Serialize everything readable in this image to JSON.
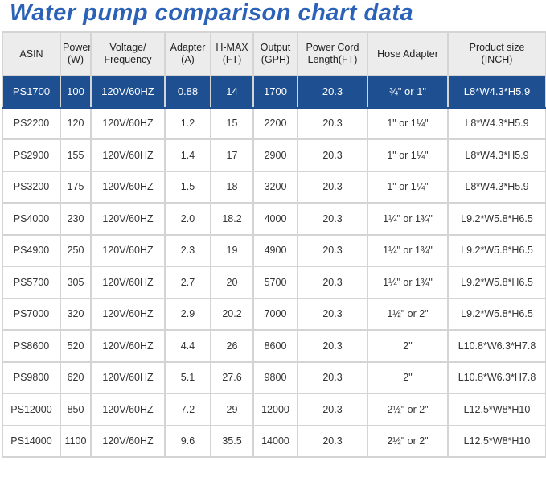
{
  "title": "Water pump comparison chart data",
  "table": {
    "header": [
      "ASIN",
      "Power\n(W)",
      "Voltage/\nFrequency",
      "Adapter\n(A)",
      "H-MAX\n(FT)",
      "Output\n(GPH)",
      "Power Cord\nLength(FT)",
      "Hose Adapter",
      "Product size\n(INCH)"
    ],
    "rows": [
      [
        "PS1700",
        "100",
        "120V/60HZ",
        "0.88",
        "14",
        "1700",
        "20.3",
        "¾\" or 1\"",
        "L8*W4.3*H5.9"
      ],
      [
        "PS2200",
        "120",
        "120V/60HZ",
        "1.2",
        "15",
        "2200",
        "20.3",
        "1\" or 1¼\"",
        "L8*W4.3*H5.9"
      ],
      [
        "PS2900",
        "155",
        "120V/60HZ",
        "1.4",
        "17",
        "2900",
        "20.3",
        "1\" or 1¼\"",
        "L8*W4.3*H5.9"
      ],
      [
        "PS3200",
        "175",
        "120V/60HZ",
        "1.5",
        "18",
        "3200",
        "20.3",
        "1\" or 1¼\"",
        "L8*W4.3*H5.9"
      ],
      [
        "PS4000",
        "230",
        "120V/60HZ",
        "2.0",
        "18.2",
        "4000",
        "20.3",
        "1¼\" or 1¾\"",
        "L9.2*W5.8*H6.5"
      ],
      [
        "PS4900",
        "250",
        "120V/60HZ",
        "2.3",
        "19",
        "4900",
        "20.3",
        "1¼\" or 1¾\"",
        "L9.2*W5.8*H6.5"
      ],
      [
        "PS5700",
        "305",
        "120V/60HZ",
        "2.7",
        "20",
        "5700",
        "20.3",
        "1¼\" or 1¾\"",
        "L9.2*W5.8*H6.5"
      ],
      [
        "PS7000",
        "320",
        "120V/60HZ",
        "2.9",
        "20.2",
        "7000",
        "20.3",
        "1½\" or 2\"",
        "L9.2*W5.8*H6.5"
      ],
      [
        "PS8600",
        "520",
        "120V/60HZ",
        "4.4",
        "26",
        "8600",
        "20.3",
        "2\"",
        "L10.8*W6.3*H7.8"
      ],
      [
        "PS9800",
        "620",
        "120V/60HZ",
        "5.1",
        "27.6",
        "9800",
        "20.3",
        "2\"",
        "L10.8*W6.3*H7.8"
      ],
      [
        "PS12000",
        "850",
        "120V/60HZ",
        "7.2",
        "29",
        "12000",
        "20.3",
        "2½\" or 2\"",
        "L12.5*W8*H10"
      ],
      [
        "PS14000",
        "1100",
        "120V/60HZ",
        "9.6",
        "35.5",
        "14000",
        "20.3",
        "2½\" or 2\"",
        "L12.5*W8*H10"
      ]
    ]
  }
}
